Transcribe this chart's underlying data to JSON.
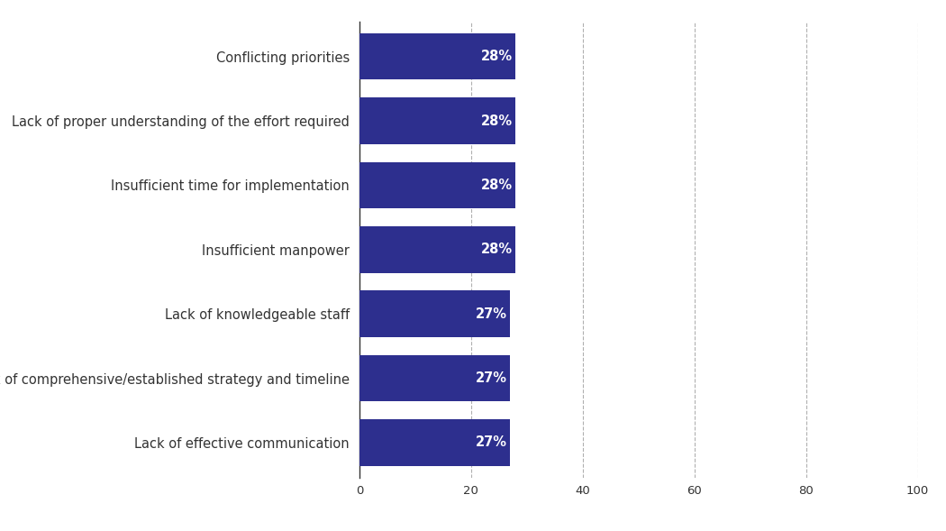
{
  "categories": [
    "Lack of effective communication",
    "Lack of comprehensive/established strategy and timeline",
    "Lack of knowledgeable staff",
    "Insufficient manpower",
    "Insufficient time for implementation",
    "Lack of proper understanding of the effort required",
    "Conflicting priorities"
  ],
  "values": [
    27,
    27,
    27,
    28,
    28,
    28,
    28
  ],
  "labels": [
    "27%",
    "27%",
    "27%",
    "28%",
    "28%",
    "28%",
    "28%"
  ],
  "bar_color": "#2d2f8e",
  "background_color": "#ffffff",
  "xlim": [
    0,
    100
  ],
  "xticks": [
    0,
    20,
    40,
    60,
    80,
    100
  ],
  "grid_color": "#b0b0b0",
  "bar_height": 0.72,
  "label_fontsize": 10.5,
  "tick_fontsize": 9.5,
  "label_color": "#ffffff",
  "axis_label_color": "#333333",
  "spine_color": "#333333"
}
